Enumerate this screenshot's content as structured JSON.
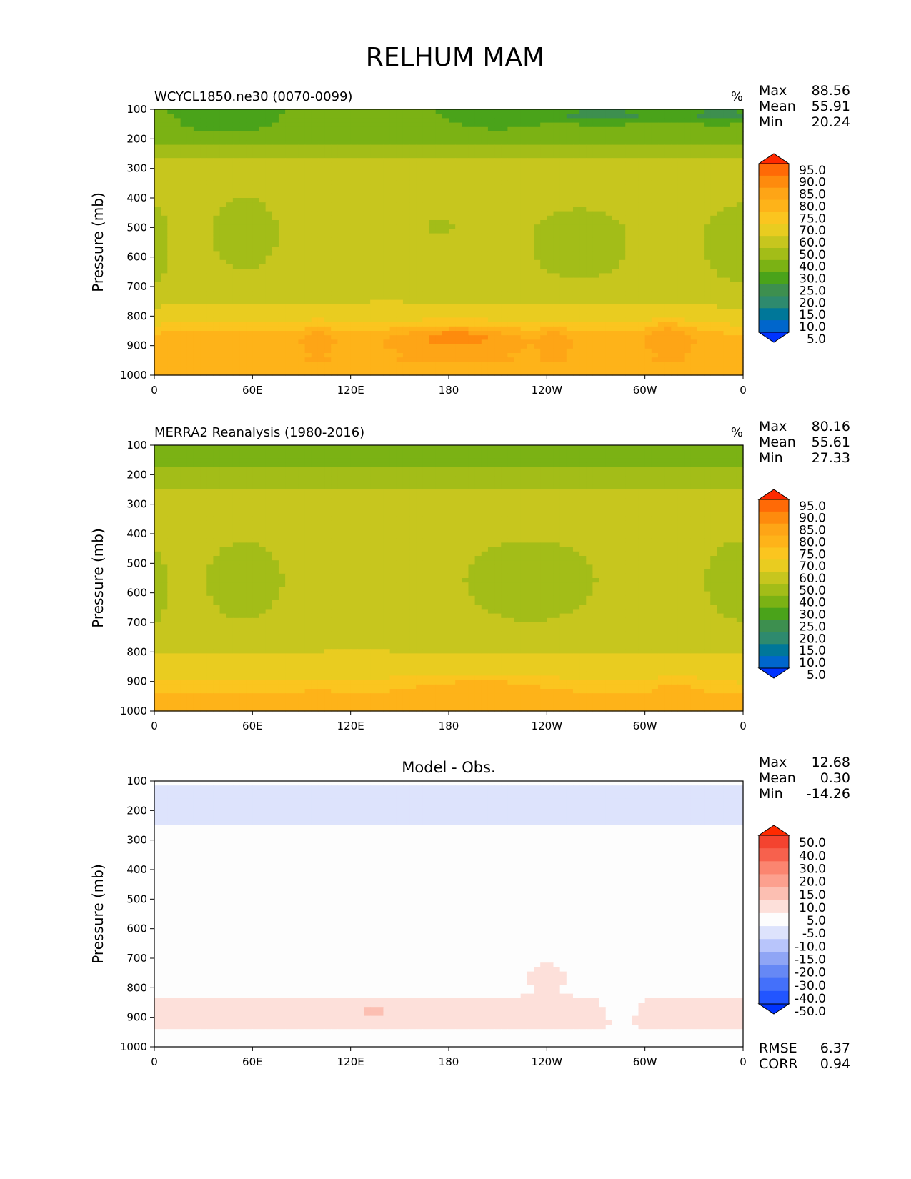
{
  "figure": {
    "title": "RELHUM MAM"
  },
  "chart_data": [
    {
      "type": "heatmap",
      "name": "test",
      "title": "WCYCL1850.ne30 (0070-0099)",
      "units": "%",
      "ylabel": "Pressure (mb)",
      "yticks": [
        "100",
        "200",
        "300",
        "400",
        "500",
        "600",
        "700",
        "800",
        "900",
        "1000"
      ],
      "xticks": [
        "0",
        "60E",
        "120E",
        "180",
        "120W",
        "60W",
        "0"
      ],
      "xlim": [
        0,
        360
      ],
      "ylim": [
        1000,
        100
      ],
      "stats": [
        {
          "label": "Max",
          "value": "88.56"
        },
        {
          "label": "Mean",
          "value": "55.91"
        },
        {
          "label": "Min",
          "value": "20.24"
        }
      ],
      "colorbar": {
        "levels": [
          "5.0",
          "10.0",
          "15.0",
          "20.0",
          "25.0",
          "30.0",
          "40.0",
          "50.0",
          "60.0",
          "70.0",
          "75.0",
          "80.0",
          "85.0",
          "90.0",
          "95.0"
        ],
        "colors": [
          "#0033ff",
          "#0066cc",
          "#007799",
          "#2e8a6e",
          "#3d8f4f",
          "#4aa31a",
          "#7bb214",
          "#a3bd18",
          "#c7c61e",
          "#e9cc20",
          "#fbc51f",
          "#feb319",
          "#fea516",
          "#fe8b0d",
          "#ff6a06",
          "#ff2a00"
        ]
      },
      "bands": [
        {
          "p": 100,
          "v": 30
        },
        {
          "p": 180,
          "v": 32
        },
        {
          "p": 230,
          "v": 42
        },
        {
          "p": 280,
          "v": 52
        },
        {
          "p": 380,
          "v": 55
        },
        {
          "p": 500,
          "v": 54
        },
        {
          "p": 650,
          "v": 55
        },
        {
          "p": 740,
          "v": 58
        },
        {
          "p": 790,
          "v": 66
        },
        {
          "p": 830,
          "v": 72
        },
        {
          "p": 880,
          "v": 79
        },
        {
          "p": 950,
          "v": 80
        },
        {
          "p": 1000,
          "v": 78
        }
      ],
      "blobs": [
        {
          "lon": 260,
          "p": 560,
          "dlon": 42,
          "dp": 175,
          "v": 45
        },
        {
          "lon": 360,
          "p": 560,
          "dlon": 34,
          "dp": 200,
          "v": 45
        },
        {
          "lon": 0,
          "p": 560,
          "dlon": 12,
          "dp": 200,
          "v": 45
        },
        {
          "lon": 55,
          "p": 520,
          "dlon": 28,
          "dp": 180,
          "v": 45
        },
        {
          "lon": 175,
          "p": 500,
          "dlon": 10,
          "dp": 35,
          "v": 45
        },
        {
          "lon": 45,
          "p": 140,
          "dlon": 28,
          "dp": 45,
          "v": 25
        },
        {
          "lon": 210,
          "p": 130,
          "dlon": 28,
          "dp": 40,
          "v": 25
        },
        {
          "lon": 275,
          "p": 120,
          "dlon": 40,
          "dp": 30,
          "v": 22
        },
        {
          "lon": 345,
          "p": 120,
          "dlon": 25,
          "dp": 30,
          "v": 22
        },
        {
          "lon": 185,
          "p": 875,
          "dlon": 38,
          "dp": 45,
          "v": 88
        },
        {
          "lon": 315,
          "p": 870,
          "dlon": 16,
          "dp": 50,
          "v": 84
        },
        {
          "lon": 100,
          "p": 875,
          "dlon": 10,
          "dp": 45,
          "v": 84
        },
        {
          "lon": 245,
          "p": 880,
          "dlon": 10,
          "dp": 45,
          "v": 84
        }
      ]
    },
    {
      "type": "heatmap",
      "name": "reference",
      "title": "MERRA2 Reanalysis (1980-2016)",
      "units": "%",
      "ylabel": "Pressure (mb)",
      "yticks": [
        "100",
        "200",
        "300",
        "400",
        "500",
        "600",
        "700",
        "800",
        "900",
        "1000"
      ],
      "xticks": [
        "0",
        "60E",
        "120E",
        "180",
        "120W",
        "60W",
        "0"
      ],
      "xlim": [
        0,
        360
      ],
      "ylim": [
        1000,
        100
      ],
      "stats": [
        {
          "label": "Max",
          "value": "80.16"
        },
        {
          "label": "Mean",
          "value": "55.61"
        },
        {
          "label": "Min",
          "value": "27.33"
        }
      ],
      "colorbar": {
        "levels": [
          "5.0",
          "10.0",
          "15.0",
          "20.0",
          "25.0",
          "30.0",
          "40.0",
          "50.0",
          "60.0",
          "70.0",
          "75.0",
          "80.0",
          "85.0",
          "90.0",
          "95.0"
        ],
        "colors": [
          "#0033ff",
          "#0066cc",
          "#007799",
          "#2e8a6e",
          "#3d8f4f",
          "#4aa31a",
          "#7bb214",
          "#a3bd18",
          "#c7c61e",
          "#e9cc20",
          "#fbc51f",
          "#feb319",
          "#fea516",
          "#fe8b0d",
          "#ff6a06",
          "#ff2a00"
        ]
      },
      "bands": [
        {
          "p": 100,
          "v": 35
        },
        {
          "p": 170,
          "v": 38
        },
        {
          "p": 220,
          "v": 46
        },
        {
          "p": 280,
          "v": 53
        },
        {
          "p": 400,
          "v": 55
        },
        {
          "p": 550,
          "v": 54
        },
        {
          "p": 700,
          "v": 55
        },
        {
          "p": 780,
          "v": 58
        },
        {
          "p": 840,
          "v": 65
        },
        {
          "p": 900,
          "v": 70
        },
        {
          "p": 950,
          "v": 76
        },
        {
          "p": 1000,
          "v": 77
        }
      ],
      "blobs": [
        {
          "lon": 230,
          "p": 560,
          "dlon": 55,
          "dp": 200,
          "v": 45
        },
        {
          "lon": 360,
          "p": 560,
          "dlon": 32,
          "dp": 200,
          "v": 45
        },
        {
          "lon": 0,
          "p": 580,
          "dlon": 10,
          "dp": 180,
          "v": 45
        },
        {
          "lon": 55,
          "p": 560,
          "dlon": 32,
          "dp": 190,
          "v": 45
        },
        {
          "lon": 200,
          "p": 930,
          "dlon": 60,
          "dp": 55,
          "v": 78
        },
        {
          "lon": 320,
          "p": 930,
          "dlon": 16,
          "dp": 45,
          "v": 78
        },
        {
          "lon": 100,
          "p": 950,
          "dlon": 14,
          "dp": 50,
          "v": 76
        }
      ]
    },
    {
      "type": "heatmap",
      "name": "difference",
      "title": "Model - Obs.",
      "units": "",
      "ylabel": "Pressure (mb)",
      "yticks": [
        "100",
        "200",
        "300",
        "400",
        "500",
        "600",
        "700",
        "800",
        "900",
        "1000"
      ],
      "xticks": [
        "0",
        "60E",
        "120E",
        "180",
        "120W",
        "60W",
        "0"
      ],
      "xlim": [
        0,
        360
      ],
      "ylim": [
        1000,
        100
      ],
      "stats": [
        {
          "label": "Max",
          "value": "12.68"
        },
        {
          "label": "Mean",
          "value": "0.30"
        },
        {
          "label": "Min",
          "value": "-14.26"
        }
      ],
      "metrics": [
        {
          "label": "RMSE",
          "value": "6.37"
        },
        {
          "label": "CORR",
          "value": "0.94"
        }
      ],
      "colorbar": {
        "levels": [
          "-50.0",
          "-40.0",
          "-30.0",
          "-20.0",
          "-15.0",
          "-10.0",
          "-5.0",
          "5.0",
          "10.0",
          "15.0",
          "20.0",
          "30.0",
          "40.0",
          "50.0"
        ],
        "colors": [
          "#0033ff",
          "#2255ff",
          "#4470fa",
          "#6688f5",
          "#8fa5f5",
          "#b8c5fb",
          "#dde3fc",
          "#fdfdfd",
          "#fde0da",
          "#fcbfb2",
          "#fca08e",
          "#fb8570",
          "#f7614d",
          "#f4432f",
          "#ff2a00"
        ]
      },
      "bands": [
        {
          "p": 100,
          "v": -4
        },
        {
          "p": 150,
          "v": -7
        },
        {
          "p": 200,
          "v": -10
        },
        {
          "p": 240,
          "v": -7
        },
        {
          "p": 280,
          "v": -2
        },
        {
          "p": 400,
          "v": 0
        },
        {
          "p": 700,
          "v": 1
        },
        {
          "p": 790,
          "v": 3
        },
        {
          "p": 850,
          "v": 6
        },
        {
          "p": 920,
          "v": 7
        },
        {
          "p": 960,
          "v": 3
        },
        {
          "p": 1000,
          "v": 1
        }
      ],
      "blobs": [
        {
          "lon": 135,
          "p": 880,
          "dlon": 20,
          "dp": 30,
          "v": 11
        },
        {
          "lon": 240,
          "p": 760,
          "dlon": 18,
          "dp": 70,
          "v": 7
        },
        {
          "lon": 285,
          "p": 800,
          "dlon": 10,
          "dp": 140,
          "v": -4
        },
        {
          "lon": 15,
          "p": 120,
          "dlon": 15,
          "dp": 30,
          "v": -5
        }
      ]
    }
  ]
}
